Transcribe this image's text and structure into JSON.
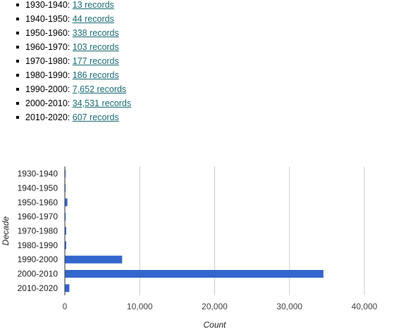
{
  "records_list": [
    {
      "label": "1930-1940:",
      "link": "13 records"
    },
    {
      "label": "1940-1950:",
      "link": "44 records"
    },
    {
      "label": "1950-1960:",
      "link": "338 records"
    },
    {
      "label": "1960-1970:",
      "link": "103 records"
    },
    {
      "label": "1970-1980:",
      "link": "177 records"
    },
    {
      "label": "1980-1990:",
      "link": "186 records"
    },
    {
      "label": "1990-2000:",
      "link": "7,652 records"
    },
    {
      "label": "2000-2010:",
      "link": "34,531 records"
    },
    {
      "label": "2010-2020:",
      "link": "607 records"
    }
  ],
  "chart_data": {
    "type": "bar",
    "orientation": "horizontal",
    "categories": [
      "1930-1940",
      "1940-1950",
      "1950-1960",
      "1960-1970",
      "1970-1980",
      "1980-1990",
      "1990-2000",
      "2000-2010",
      "2010-2020"
    ],
    "values": [
      13,
      44,
      338,
      103,
      177,
      186,
      7652,
      34531,
      607
    ],
    "xlabel": "Count",
    "ylabel": "Decade",
    "xlim": [
      0,
      40000
    ],
    "xticks": [
      0,
      10000,
      20000,
      30000,
      40000
    ],
    "xtick_labels": [
      "0",
      "10,000",
      "20,000",
      "30,000",
      "40,000"
    ],
    "grid": true,
    "legend": "none",
    "bar_color": "#3366cc",
    "grid_color": "#cccccc",
    "axis_color": "#333333"
  }
}
